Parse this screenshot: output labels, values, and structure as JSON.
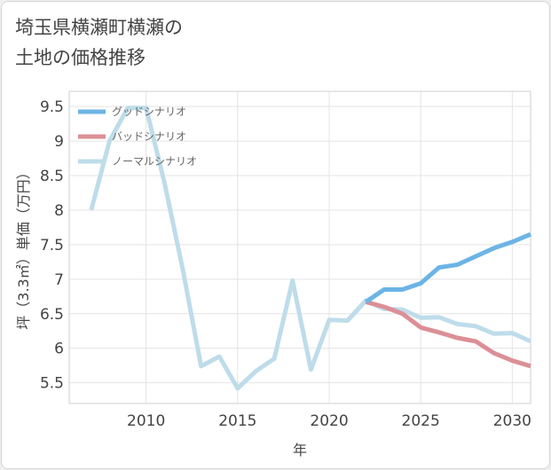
{
  "title_line1": "埼玉県横瀬町横瀬の",
  "title_line2": "土地の価格推移",
  "chart_data": {
    "type": "line",
    "xlabel": "年",
    "ylabel": "坪（3.3㎡）単価（万円）",
    "xlim": [
      2005.8,
      2031
    ],
    "ylim": [
      5.2,
      9.72
    ],
    "xticks": [
      2010,
      2015,
      2020,
      2025,
      2030
    ],
    "yticks": [
      {
        "value": 5.5,
        "label": "5.5"
      },
      {
        "value": 6,
        "label": "6"
      },
      {
        "value": 6.5,
        "label": "6.5"
      },
      {
        "value": 7,
        "label": "7"
      },
      {
        "value": 7.5,
        "label": "7.5"
      },
      {
        "value": 8,
        "label": "8"
      },
      {
        "value": 8.5,
        "label": "8.5"
      },
      {
        "value": 9,
        "label": "9"
      },
      {
        "value": 9.5,
        "label": "9.5"
      }
    ],
    "grid": true,
    "legend_position": "top-left",
    "series": [
      {
        "name": "グッドシナリオ",
        "color": "#6cb4e6",
        "x": [
          2022,
          2023,
          2024,
          2025,
          2026,
          2027,
          2028,
          2029,
          2030,
          2031
        ],
        "y": [
          6.67,
          6.85,
          6.85,
          6.94,
          7.17,
          7.21,
          7.33,
          7.45,
          7.54,
          7.65
        ]
      },
      {
        "name": "バッドシナリオ",
        "color": "#dc8f96",
        "x": [
          2022,
          2023,
          2024,
          2025,
          2026,
          2027,
          2028,
          2029,
          2030,
          2031
        ],
        "y": [
          6.67,
          6.6,
          6.5,
          6.3,
          6.23,
          6.15,
          6.1,
          5.93,
          5.82,
          5.74
        ]
      },
      {
        "name": "ノーマルシナリオ",
        "color": "#bedcea",
        "x": [
          2007,
          2008,
          2009,
          2010,
          2011,
          2012,
          2013,
          2014,
          2015,
          2016,
          2017,
          2018,
          2019,
          2020,
          2021,
          2022,
          2023,
          2024,
          2025,
          2026,
          2027,
          2028,
          2029,
          2030,
          2031
        ],
        "y": [
          8.0,
          9.0,
          9.48,
          9.48,
          8.4,
          7.15,
          5.74,
          5.88,
          5.42,
          5.67,
          5.85,
          6.98,
          5.69,
          6.41,
          6.4,
          6.69,
          6.57,
          6.56,
          6.44,
          6.45,
          6.35,
          6.32,
          6.21,
          6.22,
          6.1
        ]
      }
    ]
  }
}
